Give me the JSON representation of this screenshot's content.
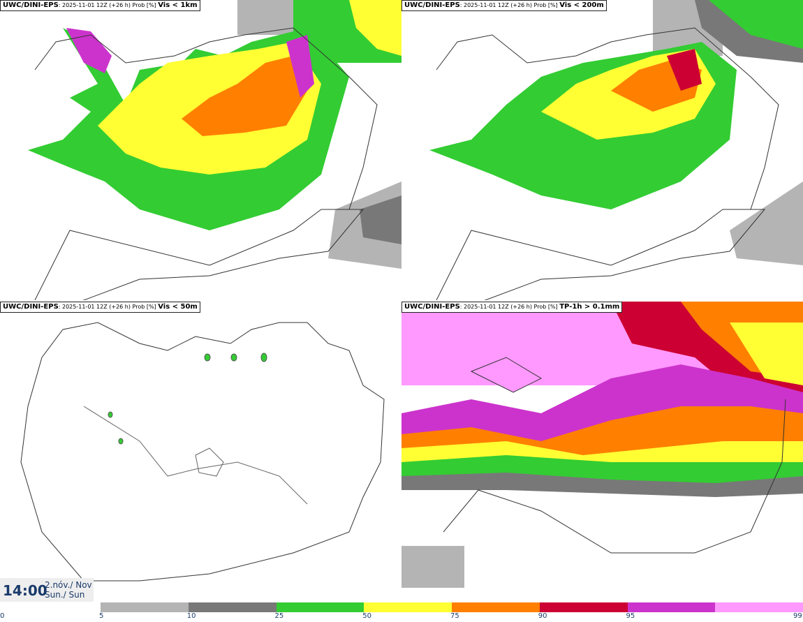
{
  "panels": [
    {
      "model": "UWC/DINI-EPS",
      "info": ": 2025-11-01 12Z (+26 h) Prob [%] ",
      "variable": "Vis < 1km"
    },
    {
      "model": "UWC/DINI-EPS",
      "info": ": 2025-11-01 12Z (+26 h) Prob [%] ",
      "variable": "Vis < 200m"
    },
    {
      "model": "UWC/DINI-EPS",
      "info": ": 2025-11-01 12Z (+26 h) Prob [%] ",
      "variable": "Vis < 50m"
    },
    {
      "model": "UWC/DINI-EPS",
      "info": ": 2025-11-01 12Z (+26 h) Prob [%] ",
      "variable": "TP-1h > 0.1mm"
    }
  ],
  "time": {
    "hour": "14:00",
    "date_line1": "2.nóv./ Nov",
    "date_line2": "Sun./ Sun"
  },
  "colorbar": {
    "ticks": [
      "0",
      "5",
      "10",
      "25",
      "50",
      "75",
      "90",
      "95",
      "99"
    ],
    "colors": [
      "#b4b4b4",
      "#787878",
      "#33cc33",
      "#ffff33",
      "#ff7f00",
      "#cc0033",
      "#cc33cc",
      "#ff99ff"
    ]
  }
}
